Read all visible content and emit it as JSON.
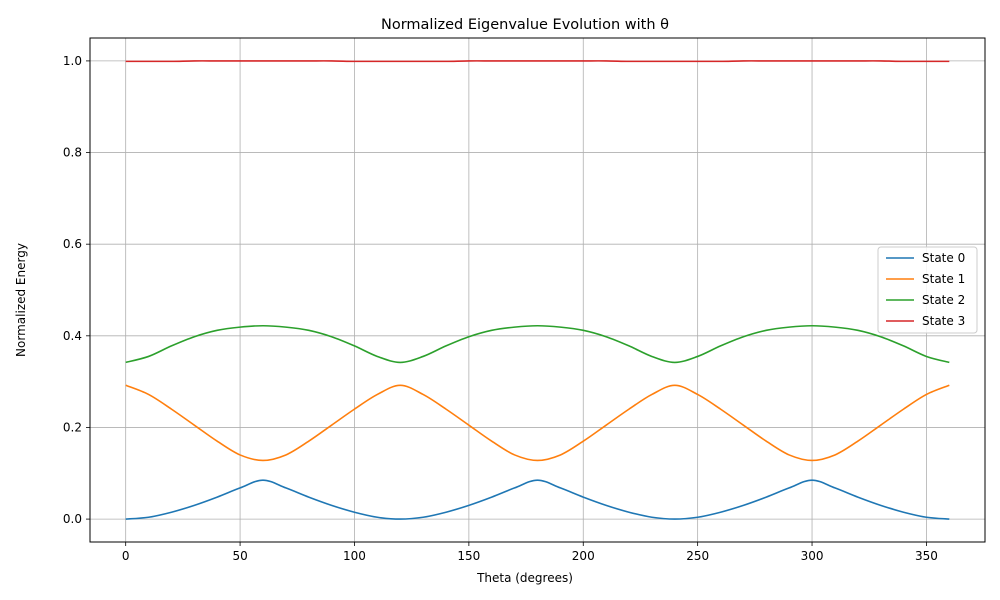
{
  "chart_data": {
    "type": "line",
    "title": "Normalized Eigenvalue Evolution with θ",
    "xlabel": "Theta (degrees)",
    "ylabel": "Normalized Energy",
    "xlim": [
      -15.6,
      375.6
    ],
    "ylim": [
      -0.05,
      1.05
    ],
    "xticks": [
      0,
      50,
      100,
      150,
      200,
      250,
      300,
      350
    ],
    "yticks": [
      0.0,
      0.2,
      0.4,
      0.6,
      0.8,
      1.0
    ],
    "xtick_labels": [
      "0",
      "50",
      "100",
      "150",
      "200",
      "250",
      "300",
      "350"
    ],
    "ytick_labels": [
      "0.0",
      "0.2",
      "0.4",
      "0.6",
      "0.8",
      "1.0"
    ],
    "grid": true,
    "legend_position": "center-right",
    "x": [
      0,
      10,
      20,
      30,
      40,
      50,
      60,
      70,
      80,
      90,
      100,
      110,
      120,
      130,
      140,
      150,
      160,
      170,
      180,
      190,
      200,
      210,
      220,
      230,
      240,
      250,
      260,
      270,
      280,
      290,
      300,
      310,
      320,
      330,
      340,
      350,
      360
    ],
    "series": [
      {
        "name": "State 0",
        "color": "#1f77b4",
        "values": [
          0.0,
          0.004,
          0.015,
          0.03,
          0.048,
          0.068,
          0.085,
          0.068,
          0.048,
          0.03,
          0.015,
          0.004,
          0.0,
          0.004,
          0.015,
          0.03,
          0.048,
          0.068,
          0.085,
          0.068,
          0.048,
          0.03,
          0.015,
          0.004,
          0.0,
          0.004,
          0.015,
          0.03,
          0.048,
          0.068,
          0.085,
          0.068,
          0.048,
          0.03,
          0.015,
          0.004,
          0.0
        ]
      },
      {
        "name": "State 1",
        "color": "#ff7f0e",
        "values": [
          0.292,
          0.272,
          0.24,
          0.205,
          0.17,
          0.14,
          0.128,
          0.14,
          0.17,
          0.205,
          0.24,
          0.272,
          0.292,
          0.272,
          0.24,
          0.205,
          0.17,
          0.14,
          0.128,
          0.14,
          0.17,
          0.205,
          0.24,
          0.272,
          0.292,
          0.272,
          0.24,
          0.205,
          0.17,
          0.14,
          0.128,
          0.14,
          0.17,
          0.205,
          0.24,
          0.272,
          0.292
        ]
      },
      {
        "name": "State 2",
        "color": "#2ca02c",
        "values": [
          0.342,
          0.355,
          0.378,
          0.398,
          0.412,
          0.419,
          0.422,
          0.419,
          0.412,
          0.398,
          0.378,
          0.355,
          0.342,
          0.355,
          0.378,
          0.398,
          0.412,
          0.419,
          0.422,
          0.419,
          0.412,
          0.398,
          0.378,
          0.355,
          0.342,
          0.355,
          0.378,
          0.398,
          0.412,
          0.419,
          0.422,
          0.419,
          0.412,
          0.398,
          0.378,
          0.355,
          0.342
        ]
      },
      {
        "name": "State 3",
        "color": "#d62728",
        "values": [
          0.999,
          0.999,
          0.999,
          1.0,
          1.0,
          1.0,
          1.0,
          1.0,
          1.0,
          1.0,
          0.999,
          0.999,
          0.999,
          0.999,
          0.999,
          1.0,
          1.0,
          1.0,
          1.0,
          1.0,
          1.0,
          1.0,
          0.999,
          0.999,
          0.999,
          0.999,
          0.999,
          1.0,
          1.0,
          1.0,
          1.0,
          1.0,
          1.0,
          1.0,
          0.999,
          0.999,
          0.999
        ]
      }
    ]
  }
}
